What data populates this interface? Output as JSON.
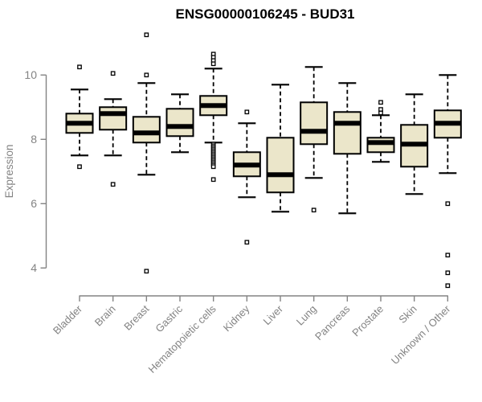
{
  "title": "ENSG00000106245 - BUD31",
  "colors": {
    "box_fill": "#EBE6CA",
    "box_stroke": "#000000",
    "median": "#000000",
    "outlier_stroke": "#000000",
    "axis": "#838383",
    "title_text": "#000000",
    "background": "#ffffff"
  },
  "chart_data": {
    "type": "box",
    "title": "ENSG00000106245 - BUD31",
    "xlabel": "",
    "ylabel": "Expression",
    "y_ticks": [
      10,
      8,
      6,
      4
    ],
    "y_axis_range_drawn": [
      4,
      10
    ],
    "grid": false,
    "legend": "none",
    "categories": [
      "Bladder",
      "Brain",
      "Breast",
      "Gastric",
      "Hematopoietic cells",
      "Kidney",
      "Liver",
      "Lung",
      "Pancreas",
      "Prostate",
      "Skin",
      "Unknown / Other"
    ],
    "series": [
      {
        "name": "Bladder",
        "whisker_low": 7.5,
        "q1": 8.2,
        "median": 8.5,
        "q3": 8.8,
        "whisker_high": 9.55,
        "outliers": [
          10.25,
          7.15
        ]
      },
      {
        "name": "Brain",
        "whisker_low": 7.5,
        "q1": 8.3,
        "median": 8.8,
        "q3": 9.0,
        "whisker_high": 9.25,
        "outliers": [
          10.05,
          6.6
        ]
      },
      {
        "name": "Breast",
        "whisker_low": 6.9,
        "q1": 7.9,
        "median": 8.2,
        "q3": 8.7,
        "whisker_high": 9.75,
        "outliers": [
          11.25,
          10.0,
          3.9
        ]
      },
      {
        "name": "Gastric",
        "whisker_low": 7.6,
        "q1": 8.1,
        "median": 8.4,
        "q3": 8.95,
        "whisker_high": 9.4,
        "outliers": []
      },
      {
        "name": "Hematopoietic cells",
        "whisker_low": 7.9,
        "q1": 8.75,
        "median": 9.05,
        "q3": 9.35,
        "whisker_high": 10.2,
        "outliers": [
          10.65,
          10.55,
          10.45,
          10.35,
          7.85,
          7.8,
          7.75,
          7.7,
          7.65,
          7.6,
          7.55,
          7.5,
          7.45,
          7.4,
          7.35,
          7.3,
          7.25,
          7.2,
          7.15,
          6.75
        ]
      },
      {
        "name": "Kidney",
        "whisker_low": 6.2,
        "q1": 6.85,
        "median": 7.2,
        "q3": 7.6,
        "whisker_high": 8.5,
        "outliers": [
          8.85,
          4.8
        ]
      },
      {
        "name": "Liver",
        "whisker_low": 5.75,
        "q1": 6.35,
        "median": 6.9,
        "q3": 8.05,
        "whisker_high": 9.7,
        "outliers": []
      },
      {
        "name": "Lung",
        "whisker_low": 6.8,
        "q1": 7.85,
        "median": 8.25,
        "q3": 9.15,
        "whisker_high": 10.25,
        "outliers": [
          5.8
        ]
      },
      {
        "name": "Pancreas",
        "whisker_low": 5.7,
        "q1": 7.55,
        "median": 8.5,
        "q3": 8.85,
        "whisker_high": 9.75,
        "outliers": []
      },
      {
        "name": "Prostate",
        "whisker_low": 7.3,
        "q1": 7.6,
        "median": 7.9,
        "q3": 8.05,
        "whisker_high": 8.75,
        "outliers": [
          9.15,
          8.93,
          8.82
        ]
      },
      {
        "name": "Skin",
        "whisker_low": 6.3,
        "q1": 7.15,
        "median": 7.85,
        "q3": 8.45,
        "whisker_high": 9.4,
        "outliers": []
      },
      {
        "name": "Unknown / Other",
        "whisker_low": 6.95,
        "q1": 8.05,
        "median": 8.5,
        "q3": 8.9,
        "whisker_high": 10.0,
        "outliers": [
          6.0,
          4.4,
          3.85,
          3.45
        ]
      }
    ]
  }
}
